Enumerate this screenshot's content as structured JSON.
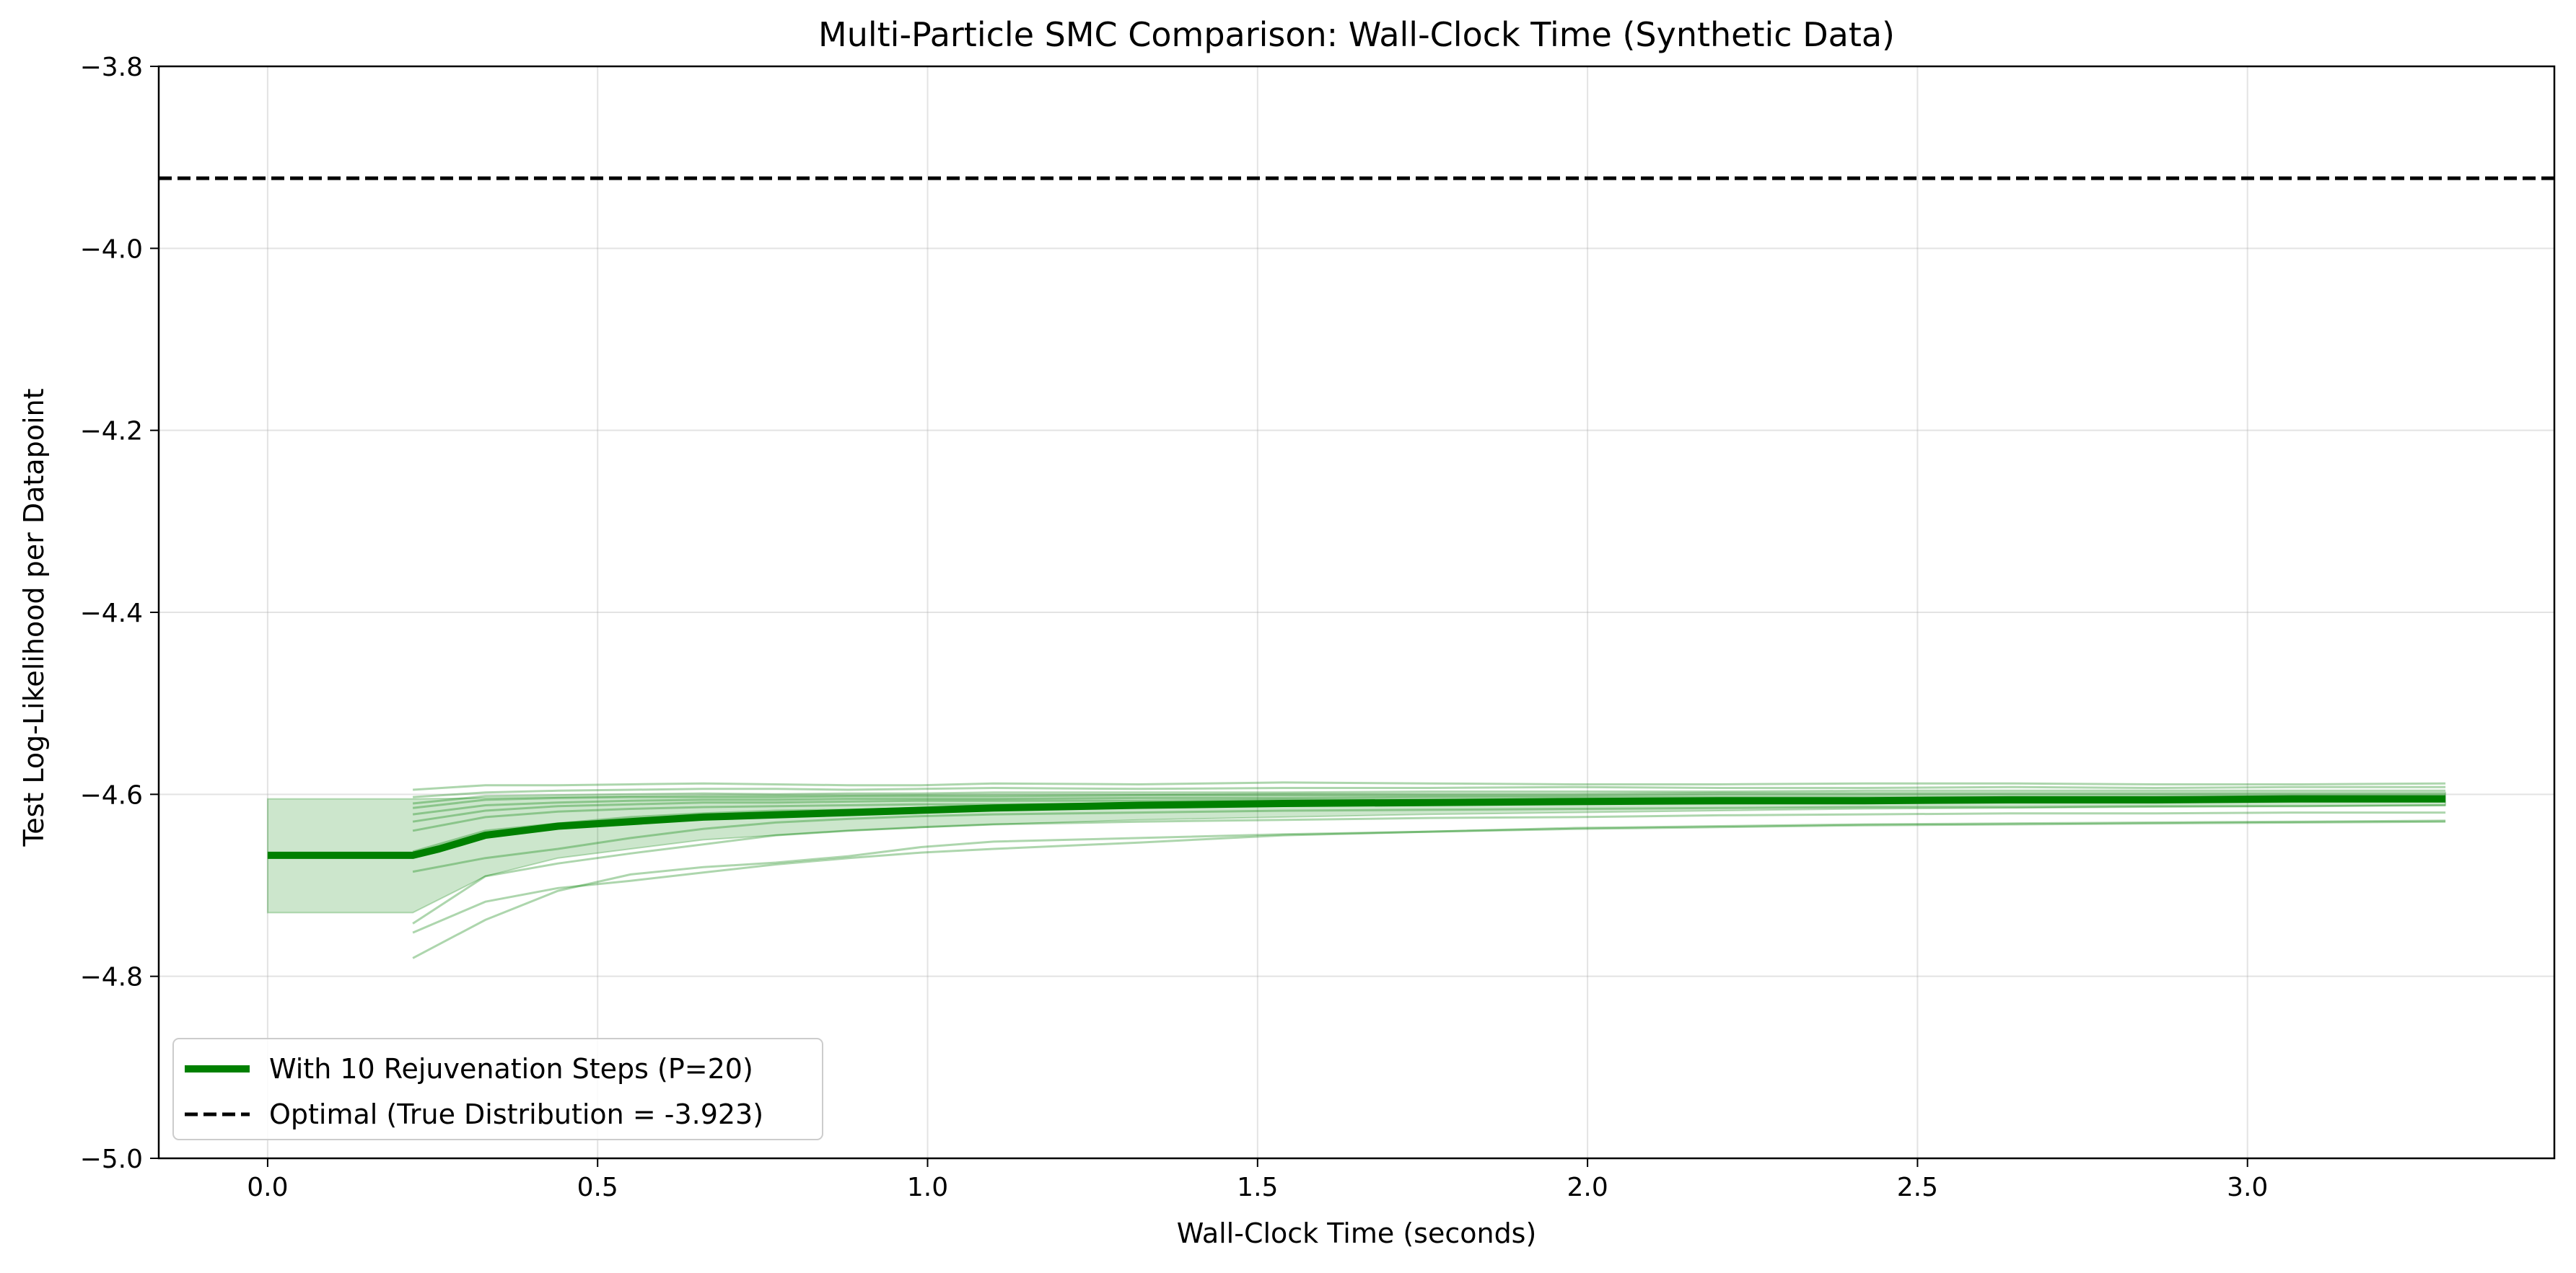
{
  "chart_data": {
    "type": "line",
    "title": "Multi-Particle SMC Comparison: Wall-Clock Time (Synthetic Data)",
    "xlabel": "Wall-Clock Time (seconds)",
    "ylabel": "Test Log-Likelihood per Datapoint",
    "xlim": [
      -0.165,
      3.465
    ],
    "ylim": [
      -5.0,
      -3.8
    ],
    "xticks": [
      0.0,
      0.5,
      1.0,
      1.5,
      2.0,
      2.5,
      3.0
    ],
    "xtick_labels": [
      "0.0",
      "0.5",
      "1.0",
      "1.5",
      "2.0",
      "2.5",
      "3.0"
    ],
    "yticks": [
      -5.0,
      -4.8,
      -4.6,
      -4.4,
      -4.2,
      -4.0,
      -3.8
    ],
    "ytick_labels": [
      "−5.0",
      "−4.8",
      "−4.6",
      "−4.4",
      "−4.2",
      "−4.0",
      "−3.8"
    ],
    "grid": true,
    "legend_position": "lower-left",
    "series": [
      {
        "name": "With 10 Rejuvenation Steps (P=20)",
        "color": "#008000",
        "x": [
          0.0,
          0.22,
          0.26,
          0.33,
          0.44,
          0.55,
          0.66,
          0.88,
          1.1,
          1.32,
          1.54,
          1.76,
          1.98,
          2.2,
          2.42,
          2.64,
          2.86,
          3.08,
          3.3
        ],
        "y": [
          -4.667,
          -4.667,
          -4.66,
          -4.645,
          -4.635,
          -4.63,
          -4.625,
          -4.62,
          -4.615,
          -4.612,
          -4.61,
          -4.609,
          -4.608,
          -4.607,
          -4.607,
          -4.606,
          -4.606,
          -4.605,
          -4.605
        ]
      },
      {
        "name": "Optimal (True Distribution = -3.923)",
        "color": "#000000",
        "y_value": -3.923,
        "style": "dashed"
      }
    ],
    "band": {
      "color": "#008000",
      "x": [
        0.0,
        0.22,
        0.33,
        0.44,
        0.55,
        0.66,
        0.88,
        1.1,
        1.32,
        1.54,
        1.76,
        1.98,
        2.2,
        2.42,
        2.64,
        2.86,
        3.08,
        3.3
      ],
      "upper": [
        -4.605,
        -4.605,
        -4.604,
        -4.603,
        -4.602,
        -4.601,
        -4.601,
        -4.6,
        -4.6,
        -4.599,
        -4.599,
        -4.599,
        -4.598,
        -4.598,
        -4.598,
        -4.598,
        -4.598,
        -4.598
      ],
      "lower": [
        -4.73,
        -4.73,
        -4.69,
        -4.67,
        -4.66,
        -4.65,
        -4.64,
        -4.633,
        -4.628,
        -4.625,
        -4.622,
        -4.62,
        -4.618,
        -4.616,
        -4.615,
        -4.614,
        -4.613,
        -4.612
      ]
    },
    "individual_runs": {
      "color": "#008000",
      "x": [
        0.22,
        0.33,
        0.44,
        0.55,
        0.66,
        0.77,
        0.88,
        0.99,
        1.1,
        1.32,
        1.54,
        1.76,
        1.98,
        2.2,
        2.42,
        2.64,
        2.86,
        3.08,
        3.3
      ],
      "runs": [
        [
          -4.595,
          -4.59,
          -4.59,
          -4.589,
          -4.588,
          -4.589,
          -4.59,
          -4.59,
          -4.588,
          -4.589,
          -4.587,
          -4.588,
          -4.589,
          -4.589,
          -4.588,
          -4.588,
          -4.589,
          -4.589,
          -4.588
        ],
        [
          -4.603,
          -4.598,
          -4.596,
          -4.595,
          -4.594,
          -4.594,
          -4.595,
          -4.594,
          -4.593,
          -4.594,
          -4.593,
          -4.593,
          -4.592,
          -4.593,
          -4.593,
          -4.592,
          -4.593,
          -4.592,
          -4.592
        ],
        [
          -4.61,
          -4.602,
          -4.601,
          -4.6,
          -4.599,
          -4.6,
          -4.599,
          -4.599,
          -4.598,
          -4.598,
          -4.598,
          -4.597,
          -4.597,
          -4.597,
          -4.596,
          -4.596,
          -4.596,
          -4.596,
          -4.596
        ],
        [
          -4.615,
          -4.606,
          -4.604,
          -4.603,
          -4.603,
          -4.603,
          -4.602,
          -4.602,
          -4.602,
          -4.601,
          -4.601,
          -4.601,
          -4.601,
          -4.6,
          -4.6,
          -4.6,
          -4.6,
          -4.6,
          -4.6
        ],
        [
          -4.622,
          -4.612,
          -4.609,
          -4.607,
          -4.606,
          -4.606,
          -4.605,
          -4.605,
          -4.605,
          -4.604,
          -4.604,
          -4.603,
          -4.603,
          -4.603,
          -4.603,
          -4.603,
          -4.603,
          -4.603,
          -4.603
        ],
        [
          -4.63,
          -4.618,
          -4.613,
          -4.611,
          -4.609,
          -4.609,
          -4.608,
          -4.607,
          -4.607,
          -4.607,
          -4.606,
          -4.606,
          -4.606,
          -4.606,
          -4.606,
          -4.605,
          -4.605,
          -4.605,
          -4.605
        ],
        [
          -4.64,
          -4.625,
          -4.619,
          -4.616,
          -4.614,
          -4.613,
          -4.612,
          -4.611,
          -4.611,
          -4.61,
          -4.609,
          -4.609,
          -4.608,
          -4.608,
          -4.608,
          -4.607,
          -4.607,
          -4.607,
          -4.607
        ],
        [
          -4.663,
          -4.64,
          -4.632,
          -4.625,
          -4.621,
          -4.618,
          -4.617,
          -4.615,
          -4.614,
          -4.613,
          -4.612,
          -4.611,
          -4.61,
          -4.61,
          -4.609,
          -4.609,
          -4.609,
          -4.608,
          -4.608
        ],
        [
          -4.685,
          -4.67,
          -4.66,
          -4.648,
          -4.638,
          -4.631,
          -4.627,
          -4.624,
          -4.622,
          -4.62,
          -4.618,
          -4.617,
          -4.616,
          -4.615,
          -4.614,
          -4.614,
          -4.613,
          -4.613,
          -4.612
        ],
        [
          -4.742,
          -4.69,
          -4.676,
          -4.665,
          -4.655,
          -4.645,
          -4.64,
          -4.636,
          -4.633,
          -4.63,
          -4.628,
          -4.626,
          -4.625,
          -4.623,
          -4.622,
          -4.621,
          -4.621,
          -4.62,
          -4.62
        ],
        [
          -4.752,
          -4.718,
          -4.703,
          -4.695,
          -4.686,
          -4.677,
          -4.67,
          -4.664,
          -4.66,
          -4.653,
          -4.645,
          -4.641,
          -4.637,
          -4.635,
          -4.633,
          -4.632,
          -4.631,
          -4.63,
          -4.629
        ],
        [
          -4.78,
          -4.738,
          -4.706,
          -4.688,
          -4.68,
          -4.675,
          -4.668,
          -4.658,
          -4.652,
          -4.648,
          -4.644,
          -4.641,
          -4.638,
          -4.636,
          -4.634,
          -4.633,
          -4.632,
          -4.631,
          -4.63
        ]
      ]
    }
  }
}
